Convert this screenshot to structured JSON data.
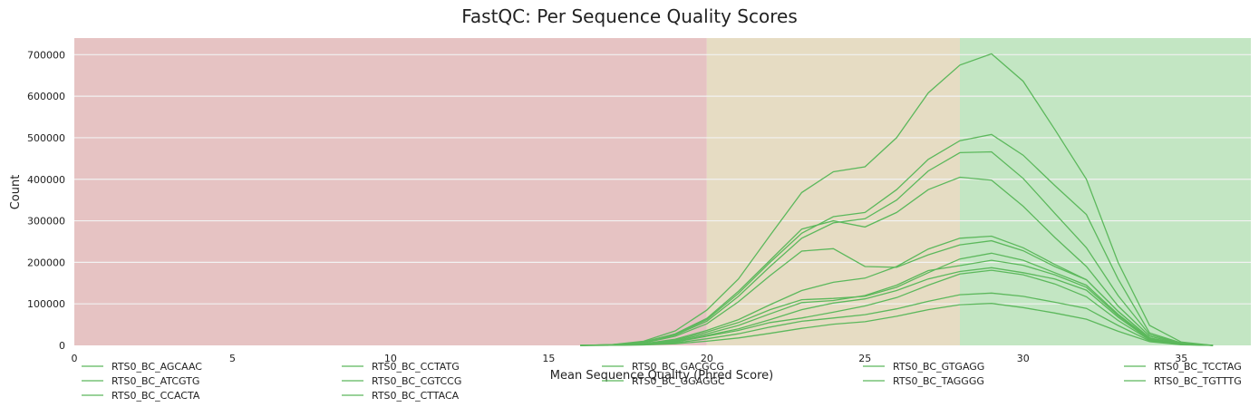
{
  "chart_data": {
    "type": "line",
    "title": "FastQC: Per Sequence Quality Scores",
    "xlabel": "Mean Sequence Quality (Phred Score)",
    "ylabel": "Count",
    "xlim": [
      0,
      37.2
    ],
    "ylim": [
      0,
      740000
    ],
    "xticks": [
      0,
      5,
      10,
      15,
      20,
      25,
      30,
      35
    ],
    "yticks": [
      0,
      100000,
      200000,
      300000,
      400000,
      500000,
      600000,
      700000
    ],
    "grid": true,
    "legend_position": "bottom",
    "line_color": "#5cb85c",
    "zones": [
      {
        "from": 0,
        "to": 20,
        "color": "#e6c3c3"
      },
      {
        "from": 20,
        "to": 28,
        "color": "#e6dcc3"
      },
      {
        "from": 28,
        "to": 37.2,
        "color": "#c3e6c3"
      }
    ],
    "x": [
      16,
      17,
      18,
      19,
      20,
      21,
      22,
      23,
      24,
      25,
      26,
      27,
      28,
      29,
      30,
      31,
      32,
      33,
      34,
      35,
      36
    ],
    "series": [
      {
        "name": "RTS0_BC_AGCAAC",
        "values": [
          0,
          2000,
          10000,
          35000,
          85000,
          160000,
          265000,
          368000,
          418000,
          430000,
          500000,
          608000,
          675000,
          702000,
          636000,
          520000,
          400000,
          200000,
          48000,
          8000,
          0
        ]
      },
      {
        "name": "RTS0_BC_ATCGTG",
        "values": [
          0,
          1500,
          8000,
          28000,
          65000,
          130000,
          205000,
          280000,
          300000,
          285000,
          320000,
          375000,
          405000,
          398000,
          335000,
          260000,
          190000,
          95000,
          22000,
          4000,
          0
        ]
      },
      {
        "name": "RTS0_BC_CCACTA",
        "values": [
          0,
          1500,
          8000,
          27000,
          62000,
          125000,
          200000,
          270000,
          310000,
          320000,
          375000,
          448000,
          493000,
          508000,
          458000,
          385000,
          315000,
          160000,
          30000,
          6000,
          0
        ]
      },
      {
        "name": "RTS0_BC_CCTATG",
        "values": [
          0,
          1200,
          7000,
          25000,
          58000,
          118000,
          190000,
          258000,
          295000,
          305000,
          350000,
          420000,
          464000,
          466000,
          402000,
          318000,
          235000,
          120000,
          26000,
          5000,
          0
        ]
      },
      {
        "name": "RTS0_BC_CGTCCG",
        "values": [
          0,
          1000,
          6000,
          22000,
          52000,
          105000,
          168000,
          227000,
          233000,
          190000,
          188000,
          218000,
          242000,
          252000,
          228000,
          190000,
          158000,
          82000,
          18000,
          3000,
          0
        ]
      },
      {
        "name": "RTS0_BC_CTTACA",
        "values": [
          0,
          800,
          4000,
          15000,
          36000,
          62000,
          98000,
          132000,
          152000,
          162000,
          190000,
          232000,
          258000,
          263000,
          235000,
          195000,
          158000,
          82000,
          18000,
          3000,
          0
        ]
      },
      {
        "name": "RTS0_BC_GACGCG",
        "values": [
          0,
          700,
          3500,
          13000,
          32000,
          55000,
          86000,
          110000,
          113000,
          118000,
          140000,
          175000,
          208000,
          222000,
          205000,
          175000,
          145000,
          75000,
          16000,
          3000,
          0
        ]
      },
      {
        "name": "RTS0_BC_GGAGGC",
        "values": [
          0,
          600,
          3000,
          11000,
          28000,
          48000,
          76000,
          103000,
          108000,
          120000,
          145000,
          180000,
          192000,
          205000,
          193000,
          170000,
          140000,
          72000,
          15000,
          3000,
          0
        ]
      },
      {
        "name": "RTS0_BC_GTGAGG",
        "values": [
          0,
          500,
          2500,
          9000,
          24000,
          40000,
          62000,
          86000,
          102000,
          112000,
          132000,
          160000,
          178000,
          187000,
          175000,
          160000,
          133000,
          68000,
          14000,
          2500,
          0
        ]
      },
      {
        "name": "RTS0_BC_TAGGGG",
        "values": [
          0,
          400,
          2000,
          8000,
          22000,
          36000,
          55000,
          66000,
          80000,
          95000,
          115000,
          145000,
          172000,
          181000,
          170000,
          148000,
          117000,
          60000,
          13000,
          2500,
          0
        ]
      },
      {
        "name": "RTS0_BC_TCCTAG",
        "values": [
          0,
          300,
          1500,
          6000,
          16000,
          28000,
          44000,
          58000,
          66000,
          74000,
          88000,
          106000,
          122000,
          126000,
          118000,
          104000,
          89000,
          48000,
          11000,
          2000,
          0
        ]
      },
      {
        "name": "RTS0_BC_TGTTTG",
        "values": [
          0,
          200,
          1000,
          4000,
          10000,
          18000,
          29000,
          41000,
          51000,
          57000,
          70000,
          86000,
          98000,
          101000,
          91000,
          78000,
          63000,
          34000,
          9000,
          1500,
          0
        ]
      }
    ]
  }
}
